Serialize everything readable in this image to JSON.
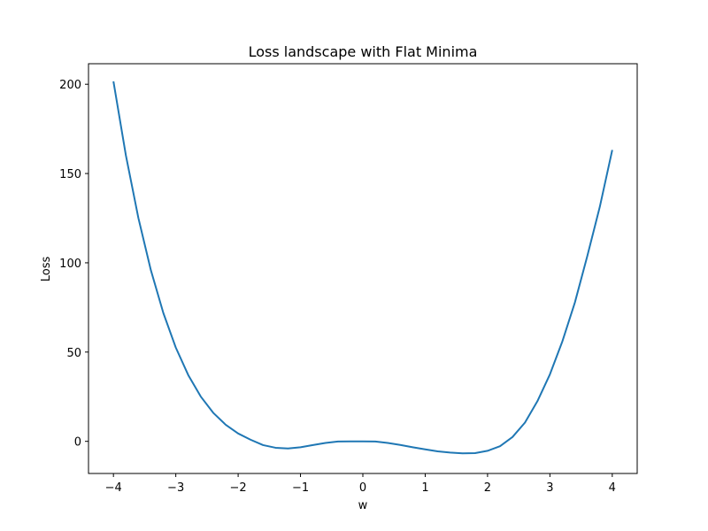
{
  "chart_data": {
    "type": "line",
    "title": "Loss landscape with Flat Minima",
    "xlabel": "w",
    "ylabel": "Loss",
    "xlim": [
      -4.4,
      4.4
    ],
    "ylim": [
      -18,
      211.5
    ],
    "grid": false,
    "x_ticks": [
      -4,
      -3,
      -2,
      -1,
      0,
      1,
      2,
      3,
      4
    ],
    "x_tick_labels": [
      "−4",
      "−3",
      "−2",
      "−1",
      "0",
      "1",
      "2",
      "3",
      "4"
    ],
    "y_ticks": [
      0,
      50,
      100,
      150,
      200
    ],
    "y_tick_labels": [
      "0",
      "50",
      "100",
      "150",
      "200"
    ],
    "series": [
      {
        "color": "#1f77b4",
        "x": [
          -4.0,
          -3.8,
          -3.6,
          -3.4,
          -3.2,
          -3.0,
          -2.8,
          -2.6,
          -2.4,
          -2.2,
          -2.0,
          -1.8,
          -1.6,
          -1.4,
          -1.2,
          -1.0,
          -0.8,
          -0.6,
          -0.4,
          -0.2,
          0.0,
          0.2,
          0.4,
          0.6,
          0.8,
          1.0,
          1.2,
          1.4,
          1.6,
          1.8,
          2.0,
          2.2,
          2.4,
          2.6,
          2.8,
          3.0,
          3.2,
          3.4,
          3.6,
          3.8,
          4.0
        ],
        "y": [
          201.6,
          160.1,
          125.1,
          95.9,
          71.9,
          52.5,
          37.1,
          25.1,
          16.0,
          9.3,
          4.4,
          0.9,
          -2.1,
          -3.6,
          -4.0,
          -3.3,
          -2.1,
          -0.9,
          -0.1,
          0.0,
          0.0,
          -0.1,
          -0.9,
          -2.0,
          -3.3,
          -4.5,
          -5.6,
          -6.3,
          -6.7,
          -6.6,
          -5.3,
          -2.7,
          2.4,
          10.5,
          22.5,
          37.5,
          56.0,
          77.7,
          103.8,
          131.3,
          163.2
        ]
      }
    ]
  }
}
